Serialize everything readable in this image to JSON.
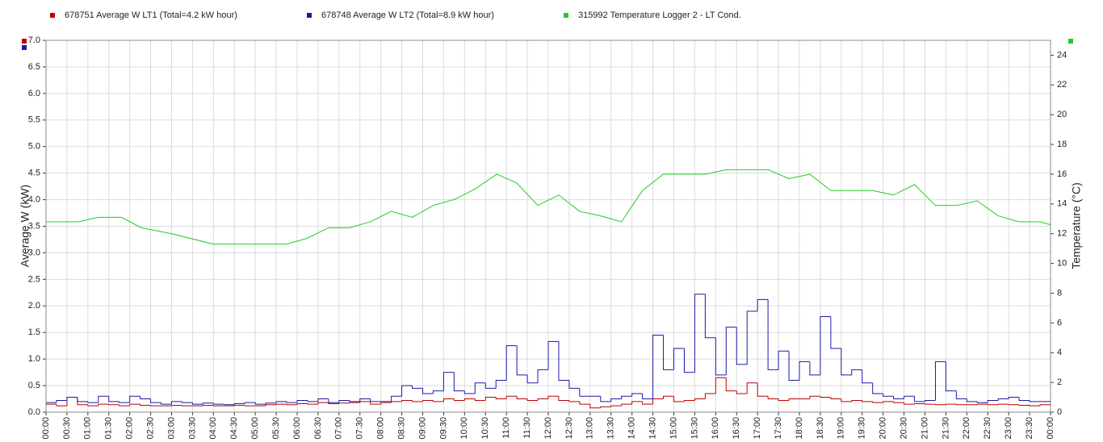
{
  "chart_data": {
    "type": "line",
    "ylabel": "Average W (kW)",
    "y2label": "Temperature (°C)",
    "xlim": [
      0,
      24
    ],
    "xticks": [
      {
        "value": 0,
        "label": "00:00"
      },
      {
        "value": 0.5,
        "label": "00:30"
      },
      {
        "value": 1,
        "label": "01:00"
      },
      {
        "value": 1.5,
        "label": "01:30"
      },
      {
        "value": 2,
        "label": "02:00"
      },
      {
        "value": 2.5,
        "label": "02:30"
      },
      {
        "value": 3,
        "label": "03:00"
      },
      {
        "value": 3.5,
        "label": "03:30"
      },
      {
        "value": 4,
        "label": "04:00"
      },
      {
        "value": 4.5,
        "label": "04:30"
      },
      {
        "value": 5,
        "label": "05:00"
      },
      {
        "value": 5.5,
        "label": "05:30"
      },
      {
        "value": 6,
        "label": "06:00"
      },
      {
        "value": 6.5,
        "label": "06:30"
      },
      {
        "value": 7,
        "label": "07:00"
      },
      {
        "value": 7.5,
        "label": "07:30"
      },
      {
        "value": 8,
        "label": "08:00"
      },
      {
        "value": 8.5,
        "label": "08:30"
      },
      {
        "value": 9,
        "label": "09:00"
      },
      {
        "value": 9.5,
        "label": "09:30"
      },
      {
        "value": 10,
        "label": "10:00"
      },
      {
        "value": 10.5,
        "label": "10:30"
      },
      {
        "value": 11,
        "label": "11:00"
      },
      {
        "value": 11.5,
        "label": "11:30"
      },
      {
        "value": 12,
        "label": "12:00"
      },
      {
        "value": 12.5,
        "label": "12:30"
      },
      {
        "value": 13,
        "label": "13:00"
      },
      {
        "value": 13.5,
        "label": "13:30"
      },
      {
        "value": 14,
        "label": "14:00"
      },
      {
        "value": 14.5,
        "label": "14:30"
      },
      {
        "value": 15,
        "label": "15:00"
      },
      {
        "value": 15.5,
        "label": "15:30"
      },
      {
        "value": 16,
        "label": "16:00"
      },
      {
        "value": 16.5,
        "label": "16:30"
      },
      {
        "value": 17,
        "label": "17:00"
      },
      {
        "value": 17.5,
        "label": "17:30"
      },
      {
        "value": 18,
        "label": "18:00"
      },
      {
        "value": 18.5,
        "label": "18:30"
      },
      {
        "value": 19,
        "label": "19:00"
      },
      {
        "value": 19.5,
        "label": "19:30"
      },
      {
        "value": 20,
        "label": "20:00"
      },
      {
        "value": 20.5,
        "label": "20:30"
      },
      {
        "value": 21,
        "label": "21:00"
      },
      {
        "value": 21.5,
        "label": "21:30"
      },
      {
        "value": 22,
        "label": "22:00"
      },
      {
        "value": 22.5,
        "label": "22:30"
      },
      {
        "value": 23,
        "label": "23:00"
      },
      {
        "value": 23.5,
        "label": "23:30"
      },
      {
        "value": 24,
        "label": "00:00"
      }
    ],
    "ylim": [
      0,
      7
    ],
    "yticks": [
      {
        "value": 0,
        "label": "0.0"
      },
      {
        "value": 0.5,
        "label": "0.5"
      },
      {
        "value": 1,
        "label": "1.0"
      },
      {
        "value": 1.5,
        "label": "1.5"
      },
      {
        "value": 2,
        "label": "2.0"
      },
      {
        "value": 2.5,
        "label": "2.5"
      },
      {
        "value": 3,
        "label": "3.0"
      },
      {
        "value": 3.5,
        "label": "3.5"
      },
      {
        "value": 4,
        "label": "4.0"
      },
      {
        "value": 4.5,
        "label": "4.5"
      },
      {
        "value": 5,
        "label": "5.0"
      },
      {
        "value": 5.5,
        "label": "5.5"
      },
      {
        "value": 6,
        "label": "6.0"
      },
      {
        "value": 6.5,
        "label": "6.5"
      },
      {
        "value": 7,
        "label": "7.0"
      }
    ],
    "y2lim": [
      0,
      25
    ],
    "y2ticks": [
      0,
      2,
      4,
      6,
      8,
      10,
      12,
      14,
      16,
      18,
      20,
      22,
      24
    ],
    "grid": true,
    "series": [
      {
        "name": "678751  Average W LT1 (Total=4.2 kW hour)",
        "color": "#c00000",
        "step": true,
        "x": [
          0,
          0.25,
          0.5,
          0.75,
          1,
          1.25,
          1.5,
          1.75,
          2,
          2.25,
          2.5,
          2.75,
          3,
          3.25,
          3.5,
          3.75,
          4,
          4.25,
          4.5,
          4.75,
          5,
          5.25,
          5.5,
          5.75,
          6,
          6.25,
          6.5,
          6.75,
          7,
          7.25,
          7.5,
          7.75,
          8,
          8.25,
          8.5,
          8.75,
          9,
          9.25,
          9.5,
          9.75,
          10,
          10.25,
          10.5,
          10.75,
          11,
          11.25,
          11.5,
          11.75,
          12,
          12.25,
          12.5,
          12.75,
          13,
          13.25,
          13.5,
          13.75,
          14,
          14.25,
          14.5,
          14.75,
          15,
          15.25,
          15.5,
          15.75,
          16,
          16.25,
          16.5,
          16.75,
          17,
          17.25,
          17.5,
          17.75,
          18,
          18.25,
          18.5,
          18.75,
          19,
          19.25,
          19.5,
          19.75,
          20,
          20.25,
          20.5,
          20.75,
          21,
          21.25,
          21.5,
          21.75,
          22,
          22.25,
          22.5,
          22.75,
          23,
          23.25,
          23.5,
          23.75
        ],
        "values": [
          0.15,
          0.12,
          0.28,
          0.14,
          0.12,
          0.15,
          0.14,
          0.12,
          0.15,
          0.13,
          0.12,
          0.12,
          0.13,
          0.12,
          0.12,
          0.13,
          0.12,
          0.12,
          0.13,
          0.12,
          0.12,
          0.14,
          0.15,
          0.14,
          0.16,
          0.15,
          0.18,
          0.16,
          0.17,
          0.18,
          0.2,
          0.15,
          0.18,
          0.2,
          0.22,
          0.2,
          0.22,
          0.2,
          0.25,
          0.22,
          0.25,
          0.22,
          0.28,
          0.25,
          0.3,
          0.25,
          0.22,
          0.25,
          0.3,
          0.22,
          0.2,
          0.15,
          0.08,
          0.1,
          0.12,
          0.15,
          0.2,
          0.15,
          0.25,
          0.3,
          0.2,
          0.22,
          0.25,
          0.35,
          0.65,
          0.4,
          0.35,
          0.55,
          0.3,
          0.25,
          0.22,
          0.25,
          0.25,
          0.3,
          0.28,
          0.25,
          0.2,
          0.22,
          0.2,
          0.18,
          0.2,
          0.18,
          0.15,
          0.16,
          0.15,
          0.14,
          0.15,
          0.14,
          0.14,
          0.15,
          0.14,
          0.15,
          0.14,
          0.13,
          0.12,
          0.14
        ]
      },
      {
        "name": "678748  Average W LT2 (Total=8.9 kW hour)",
        "color": "#1a1aa8",
        "step": true,
        "x": [
          0,
          0.25,
          0.5,
          0.75,
          1,
          1.25,
          1.5,
          1.75,
          2,
          2.25,
          2.5,
          2.75,
          3,
          3.25,
          3.5,
          3.75,
          4,
          4.25,
          4.5,
          4.75,
          5,
          5.25,
          5.5,
          5.75,
          6,
          6.25,
          6.5,
          6.75,
          7,
          7.25,
          7.5,
          7.75,
          8,
          8.25,
          8.5,
          8.75,
          9,
          9.25,
          9.5,
          9.75,
          10,
          10.25,
          10.5,
          10.75,
          11,
          11.25,
          11.5,
          11.75,
          12,
          12.25,
          12.5,
          12.75,
          13,
          13.25,
          13.5,
          13.75,
          14,
          14.25,
          14.5,
          14.75,
          15,
          15.25,
          15.5,
          15.75,
          16,
          16.25,
          16.5,
          16.75,
          17,
          17.25,
          17.5,
          17.75,
          18,
          18.25,
          18.5,
          18.75,
          19,
          19.25,
          19.5,
          19.75,
          20,
          20.25,
          20.5,
          20.75,
          21,
          21.25,
          21.5,
          21.75,
          22,
          22.25,
          22.5,
          22.75,
          23,
          23.25,
          23.5,
          23.75
        ],
        "values": [
          0.18,
          0.22,
          0.28,
          0.2,
          0.18,
          0.3,
          0.2,
          0.18,
          0.3,
          0.25,
          0.18,
          0.15,
          0.2,
          0.18,
          0.15,
          0.17,
          0.15,
          0.14,
          0.16,
          0.18,
          0.15,
          0.17,
          0.2,
          0.18,
          0.22,
          0.2,
          0.25,
          0.18,
          0.22,
          0.2,
          0.25,
          0.2,
          0.2,
          0.3,
          0.5,
          0.45,
          0.35,
          0.4,
          0.75,
          0.4,
          0.35,
          0.55,
          0.45,
          0.6,
          1.25,
          0.7,
          0.55,
          0.8,
          1.33,
          0.6,
          0.45,
          0.3,
          0.3,
          0.2,
          0.25,
          0.3,
          0.35,
          0.25,
          1.45,
          0.8,
          1.2,
          0.75,
          2.22,
          1.4,
          0.7,
          1.6,
          0.9,
          1.9,
          2.12,
          0.8,
          1.15,
          0.6,
          0.95,
          0.7,
          1.8,
          1.2,
          0.7,
          0.8,
          0.55,
          0.35,
          0.3,
          0.25,
          0.3,
          0.2,
          0.22,
          0.95,
          0.4,
          0.25,
          0.2,
          0.18,
          0.22,
          0.25,
          0.28,
          0.22,
          0.2,
          0.2
        ]
      },
      {
        "name": "315992  Temperature Logger 2 - LT Cond.",
        "color": "#22cc22",
        "axis": "y2",
        "x": [
          0,
          0.77,
          1.25,
          1.8,
          2.28,
          3,
          4,
          5,
          5.75,
          6.25,
          6.75,
          7.25,
          7.75,
          8.25,
          8.75,
          9.25,
          9.75,
          10.25,
          10.77,
          11.25,
          11.75,
          12.25,
          12.75,
          13.25,
          13.75,
          14.25,
          14.75,
          15.76,
          16.25,
          17.25,
          17.75,
          18.25,
          18.75,
          19.75,
          20.25,
          20.75,
          21.25,
          21.75,
          22.25,
          22.75,
          23.25,
          23.75,
          24
        ],
        "values": [
          12.8,
          12.8,
          13.1,
          13.1,
          12.4,
          12.0,
          11.3,
          11.3,
          11.3,
          11.7,
          12.4,
          12.4,
          12.8,
          13.5,
          13.1,
          13.9,
          14.3,
          15.0,
          16.0,
          15.4,
          13.9,
          14.6,
          13.5,
          13.2,
          12.8,
          14.9,
          16.0,
          16.0,
          16.3,
          16.3,
          15.7,
          16.0,
          14.9,
          14.9,
          14.6,
          15.3,
          13.9,
          13.9,
          14.2,
          13.2,
          12.8,
          12.8,
          12.6
        ]
      }
    ]
  }
}
